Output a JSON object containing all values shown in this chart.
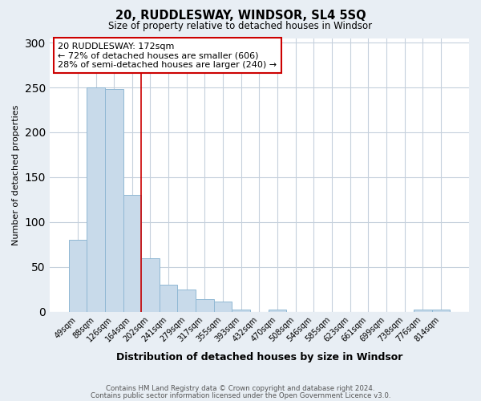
{
  "title": "20, RUDDLESWAY, WINDSOR, SL4 5SQ",
  "subtitle": "Size of property relative to detached houses in Windsor",
  "xlabel": "Distribution of detached houses by size in Windsor",
  "ylabel": "Number of detached properties",
  "categories": [
    "49sqm",
    "88sqm",
    "126sqm",
    "164sqm",
    "202sqm",
    "241sqm",
    "279sqm",
    "317sqm",
    "355sqm",
    "393sqm",
    "432sqm",
    "470sqm",
    "508sqm",
    "546sqm",
    "585sqm",
    "623sqm",
    "661sqm",
    "699sqm",
    "738sqm",
    "776sqm",
    "814sqm"
  ],
  "values": [
    80,
    250,
    248,
    130,
    60,
    30,
    25,
    14,
    11,
    2,
    0,
    2,
    0,
    0,
    0,
    0,
    0,
    0,
    0,
    2,
    2
  ],
  "bar_color": "#c8daea",
  "bar_edge_color": "#90b8d4",
  "vline_color": "#cc0000",
  "vline_index": 3,
  "annotation_title": "20 RUDDLESWAY: 172sqm",
  "annotation_line1": "← 72% of detached houses are smaller (606)",
  "annotation_line2": "28% of semi-detached houses are larger (240) →",
  "annotation_box_color": "#ffffff",
  "annotation_box_edge_color": "#cc0000",
  "ylim": [
    0,
    305
  ],
  "yticks": [
    0,
    50,
    100,
    150,
    200,
    250,
    300
  ],
  "fig_bg_color": "#e8eef4",
  "plot_bg_color": "#ffffff",
  "grid_color": "#c5d0dc",
  "footnote1": "Contains HM Land Registry data © Crown copyright and database right 2024.",
  "footnote2": "Contains public sector information licensed under the Open Government Licence v3.0."
}
